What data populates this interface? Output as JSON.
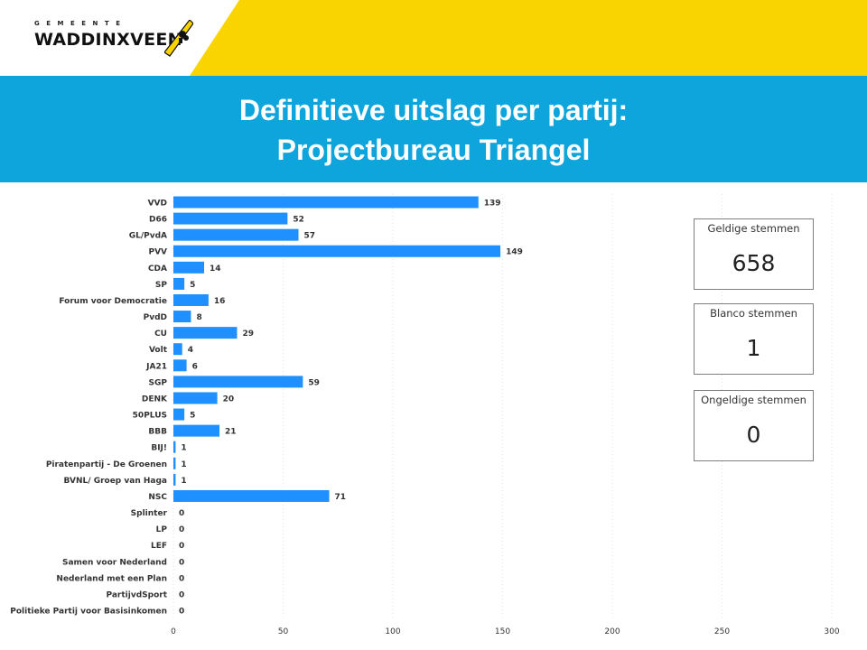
{
  "header": {
    "logo_small": "GEMEENTE",
    "logo_main": "WADDINXVEEN",
    "title_line_1": "Definitieve uitslag per partij:",
    "title_line_2": "Projectbureau Triangel"
  },
  "colors": {
    "brand_yellow": "#f9d400",
    "title_blue": "#0ea5dd",
    "bar_blue": "#1e90ff"
  },
  "cards": [
    {
      "label": "Geldige stemmen",
      "value": "658"
    },
    {
      "label": "Blanco stemmen",
      "value": "1"
    },
    {
      "label": "Ongeldige stemmen",
      "value": "0"
    }
  ],
  "chart_data": {
    "type": "bar",
    "orientation": "horizontal",
    "title": "",
    "xlabel": "",
    "ylabel": "",
    "xlim": [
      0,
      300
    ],
    "x_ticks": [
      0,
      50,
      100,
      150,
      200,
      250,
      300
    ],
    "grid": true,
    "categories": [
      "VVD",
      "D66",
      "GL/PvdA",
      "PVV",
      "CDA",
      "SP",
      "Forum voor Democratie",
      "PvdD",
      "CU",
      "Volt",
      "JA21",
      "SGP",
      "DENK",
      "50PLUS",
      "BBB",
      "BIJ!",
      "Piratenpartij - De Groenen",
      "BVNL/ Groep van Haga",
      "NSC",
      "Splinter",
      "LP",
      "LEF",
      "Samen voor Nederland",
      "Nederland met een Plan",
      "PartijvdSport",
      "Politieke Partij voor Basisinkomen"
    ],
    "values": [
      139,
      52,
      57,
      149,
      14,
      5,
      16,
      8,
      29,
      4,
      6,
      59,
      20,
      5,
      21,
      1,
      1,
      1,
      71,
      0,
      0,
      0,
      0,
      0,
      0,
      0
    ]
  }
}
